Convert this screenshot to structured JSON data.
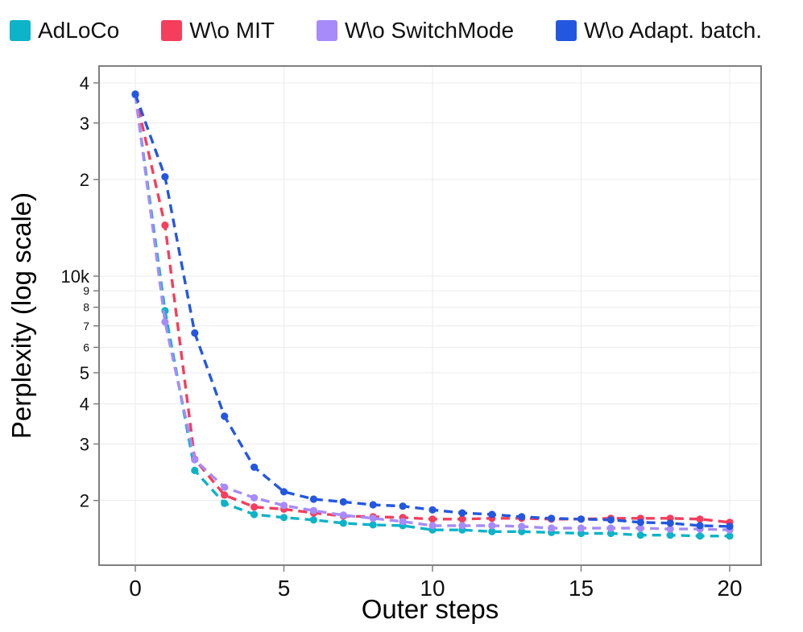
{
  "chart_data": {
    "type": "line",
    "title": "",
    "xlabel": "Outer steps",
    "ylabel": "Perplexity (log scale)",
    "yscale": "log",
    "line_style": "dashed",
    "marker": "circle",
    "grid": true,
    "legend_position": "top",
    "xlim": [
      -1.2,
      21.1
    ],
    "ylim": [
      1260,
      45200
    ],
    "x": [
      0,
      1,
      2,
      3,
      4,
      5,
      6,
      7,
      8,
      9,
      10,
      11,
      12,
      13,
      14,
      15,
      16,
      17,
      18,
      19,
      20
    ],
    "xticks": [
      {
        "v": 0,
        "label": "0"
      },
      {
        "v": 5,
        "label": "5"
      },
      {
        "v": 10,
        "label": "10"
      },
      {
        "v": 15,
        "label": "15"
      },
      {
        "v": 20,
        "label": "20"
      }
    ],
    "yticks": [
      {
        "v": 40000,
        "label": "4",
        "minor": false
      },
      {
        "v": 30000,
        "label": "3",
        "minor": false
      },
      {
        "v": 20000,
        "label": "2",
        "minor": false
      },
      {
        "v": 10000,
        "label": "10k",
        "minor": false
      },
      {
        "v": 9000,
        "label": "9",
        "minor": true
      },
      {
        "v": 8000,
        "label": "8",
        "minor": true
      },
      {
        "v": 7000,
        "label": "7",
        "minor": true
      },
      {
        "v": 6000,
        "label": "6",
        "minor": true
      },
      {
        "v": 5000,
        "label": "5",
        "minor": false
      },
      {
        "v": 4000,
        "label": "4",
        "minor": false
      },
      {
        "v": 3000,
        "label": "3",
        "minor": false
      },
      {
        "v": 2000,
        "label": "2",
        "minor": false
      }
    ],
    "series": [
      {
        "name": "AdLoCo",
        "color": "#0db3c7",
        "values": [
          36700,
          7800,
          2480,
          1960,
          1810,
          1770,
          1740,
          1700,
          1680,
          1670,
          1620,
          1620,
          1600,
          1600,
          1590,
          1580,
          1580,
          1560,
          1560,
          1550,
          1550
        ]
      },
      {
        "name": "W\\o MIT",
        "color": "#f43e5c",
        "values": [
          36800,
          14400,
          2690,
          2080,
          1910,
          1880,
          1830,
          1790,
          1780,
          1770,
          1750,
          1750,
          1760,
          1760,
          1750,
          1750,
          1760,
          1760,
          1760,
          1750,
          1710
        ]
      },
      {
        "name": "W\\o SwitchMode",
        "color": "#a78bfa",
        "values": [
          36800,
          7200,
          2680,
          2200,
          2040,
          1930,
          1860,
          1800,
          1760,
          1720,
          1670,
          1670,
          1670,
          1660,
          1640,
          1640,
          1640,
          1640,
          1630,
          1630,
          1620
        ]
      },
      {
        "name": "W\\o Adapt. batch.",
        "color": "#2457e0",
        "values": [
          36900,
          20400,
          6650,
          3660,
          2540,
          2130,
          2020,
          1980,
          1940,
          1920,
          1870,
          1830,
          1810,
          1780,
          1760,
          1750,
          1740,
          1710,
          1700,
          1670,
          1660
        ]
      }
    ]
  }
}
